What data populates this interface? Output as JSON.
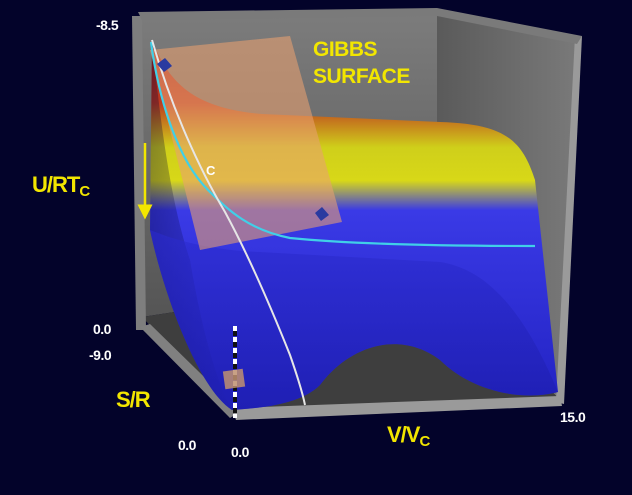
{
  "title": {
    "line1": "GIBBS",
    "line2": "SURFACE"
  },
  "axes": {
    "u": {
      "label_main": "U/RT",
      "label_sub": "C",
      "tick_top": "-8.5",
      "tick_bottom": "0.0"
    },
    "s": {
      "label": "S/R",
      "tick_far": "-9.0",
      "tick_near": "0.0"
    },
    "v": {
      "label_main": "V/V",
      "label_sub": "C",
      "tick_min": "0.0",
      "tick_max": "15.0"
    }
  },
  "critical_point_label": "C",
  "colors": {
    "background": "#03032a",
    "box_walls": "#6e6e6e",
    "surface_low": "#3434e0",
    "surface_mid": "#d8d818",
    "surface_high": "#b01a1a",
    "tangent_plane": "#e8a070",
    "label_yellow": "#f2e600",
    "coexistence_curve": "#40d0e8",
    "spinodal_curve": "#e6e6e6"
  }
}
